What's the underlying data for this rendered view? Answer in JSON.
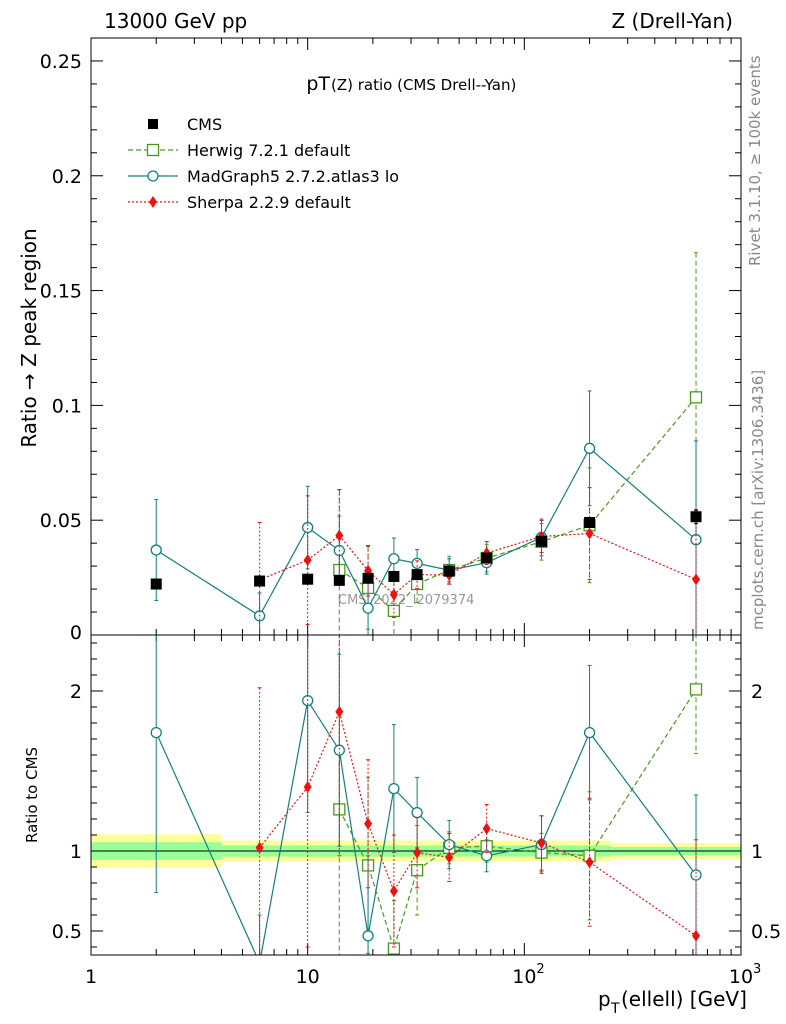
{
  "header": {
    "left": "13000 GeV pp",
    "right": "Z (Drell-Yan)"
  },
  "side_labels": {
    "events": "Rivet 3.1.10, ≥ 100k events",
    "url": "mcplots.cern.ch [arXiv:1306.3436]"
  },
  "chart_data": [
    {
      "type": "scatter",
      "panel": "main",
      "title": "pT(Z) ratio (CMS Drell--Yan)",
      "title_main": "pT",
      "title_rest": "(Z) ratio (CMS Drell--Yan)",
      "watermark": "CMS_2022_I2079374",
      "ylabel": "Ratio → Z peak region",
      "xscale": "log",
      "xlim": [
        1,
        1000
      ],
      "ylim": [
        0,
        0.26
      ],
      "yticks": [
        {
          "v": 0,
          "label": "0"
        },
        {
          "v": 0.05,
          "label": "0.05"
        },
        {
          "v": 0.1,
          "label": "0.1"
        },
        {
          "v": 0.15,
          "label": "0.15"
        },
        {
          "v": 0.2,
          "label": "0.2"
        },
        {
          "v": 0.25,
          "label": "0.25"
        }
      ],
      "legend_position": "top-left",
      "series": [
        {
          "name": "CMS",
          "color": "#000000",
          "marker": "square-filled",
          "line": "none",
          "x": [
            2,
            6,
            10,
            14,
            19,
            25,
            32,
            45,
            67,
            120,
            200,
            620
          ],
          "y": [
            0.0222,
            0.0235,
            0.0243,
            0.0238,
            0.0247,
            0.0255,
            0.0263,
            0.0278,
            0.0335,
            0.0408,
            0.049,
            0.0515
          ],
          "yerr": [
            0.0008,
            0.0008,
            0.0008,
            0.0008,
            0.0008,
            0.0008,
            0.0008,
            0.0008,
            0.0012,
            0.0015,
            0.002,
            0.003
          ]
        },
        {
          "name": "Herwig 7.2.1 default",
          "color": "#4a9a1a",
          "marker": "square-open",
          "line": "dashed",
          "x": [
            14,
            19,
            25,
            32,
            45,
            67,
            120,
            200,
            620
          ],
          "y": [
            0.0283,
            0.0205,
            0.0105,
            0.0222,
            0.0283,
            0.0335,
            0.0406,
            0.0478,
            0.1035
          ],
          "yerr": [
            0.035,
            0.018,
            0.013,
            0.008,
            0.006,
            0.006,
            0.008,
            0.025,
            0.063
          ]
        },
        {
          "name": "MadGraph5 2.7.2.atlas3 lo",
          "color": "#13807f",
          "marker": "circle-open",
          "line": "solid",
          "x": [
            2,
            6,
            10,
            14,
            19,
            25,
            32,
            45,
            67,
            120,
            200,
            620
          ],
          "y": [
            0.037,
            0.0083,
            0.0468,
            0.0368,
            0.0117,
            0.0332,
            0.0312,
            0.0282,
            0.0315,
            0.0425,
            0.0813,
            0.0415
          ],
          "yerr": [
            0.022,
            0.01,
            0.018,
            0.015,
            0.013,
            0.009,
            0.006,
            0.005,
            0.005,
            0.008,
            0.025,
            0.043
          ]
        },
        {
          "name": "Sherpa 2.2.9 default",
          "color": "#ee1111",
          "marker": "diamond-filled",
          "line": "dotted",
          "x": [
            6,
            10,
            14,
            19,
            25,
            32,
            45,
            67,
            120,
            200,
            620
          ],
          "y": [
            0.024,
            0.0326,
            0.0433,
            0.028,
            0.0176,
            0.0263,
            0.0261,
            0.0357,
            0.0429,
            0.0442,
            0.0242
          ],
          "yerr": [
            0.025,
            0.028,
            0.02,
            0.011,
            0.01,
            0.006,
            0.004,
            0.005,
            0.007,
            0.02,
            0.03
          ]
        }
      ]
    },
    {
      "type": "scatter",
      "panel": "ratio",
      "ylabel": "Ratio to CMS",
      "xlabel_main": "p",
      "xlabel_sub": "T",
      "xlabel_rest": "(ellell) [GeV]",
      "xscale": "log",
      "xlim": [
        1,
        1000
      ],
      "ylim": [
        0.35,
        2.35
      ],
      "yticks": [
        {
          "v": 0.5,
          "label": "0.5"
        },
        {
          "v": 1,
          "label": "1"
        },
        {
          "v": 2,
          "label": "2"
        }
      ],
      "xticks": [
        {
          "v": 1,
          "base": "1",
          "exp": ""
        },
        {
          "v": 10,
          "base": "10",
          "exp": ""
        },
        {
          "v": 100,
          "base": "10",
          "exp": "2"
        },
        {
          "v": 1000,
          "base": "10",
          "exp": "3"
        }
      ],
      "uncertainty_bands": {
        "edges": [
          1,
          4,
          250,
          1000
        ],
        "inner": [
          0.055,
          0.035,
          0.025
        ],
        "outer": [
          0.105,
          0.065,
          0.05
        ],
        "inner_color": "#99ff99",
        "outer_color": "#ffff99"
      },
      "series": [
        {
          "name": "Herwig 7.2.1 default",
          "color": "#4a9a1a",
          "marker": "square-open",
          "line": "dashed",
          "x": [
            14,
            19,
            25,
            32,
            45,
            67,
            120,
            200,
            620
          ],
          "y": [
            1.26,
            0.91,
            0.39,
            0.88,
            1.02,
            1.03,
            0.99,
            0.97,
            2.01
          ],
          "yerr": [
            1.2,
            0.55,
            0.3,
            0.28,
            0.1,
            0.1,
            0.12,
            0.4,
            0.4
          ]
        },
        {
          "name": "MadGraph5 2.7.2.atlas3 lo",
          "color": "#13807f",
          "marker": "circle-open",
          "line": "solid",
          "x": [
            2,
            6,
            10,
            14,
            19,
            25,
            32,
            45,
            67,
            120,
            200,
            620
          ],
          "y": [
            1.74,
            0.3,
            1.94,
            1.63,
            0.47,
            1.39,
            1.24,
            1.04,
            0.97,
            1.04,
            1.74,
            0.85
          ],
          "yerr": [
            1.0,
            0.3,
            0.7,
            0.6,
            0.5,
            0.4,
            0.22,
            0.15,
            0.1,
            0.18,
            0.42,
            0.5
          ]
        },
        {
          "name": "Sherpa 2.2.9 default",
          "color": "#ee1111",
          "marker": "diamond-filled",
          "line": "dotted",
          "x": [
            6,
            10,
            14,
            19,
            25,
            32,
            45,
            67,
            120,
            200,
            620
          ],
          "y": [
            1.02,
            1.4,
            1.87,
            1.17,
            0.75,
            0.99,
            0.96,
            1.14,
            1.05,
            0.93,
            0.47
          ],
          "yerr": [
            1.0,
            1.0,
            0.9,
            0.4,
            0.35,
            0.22,
            0.15,
            0.15,
            0.17,
            0.4,
            0.6
          ]
        }
      ]
    }
  ]
}
